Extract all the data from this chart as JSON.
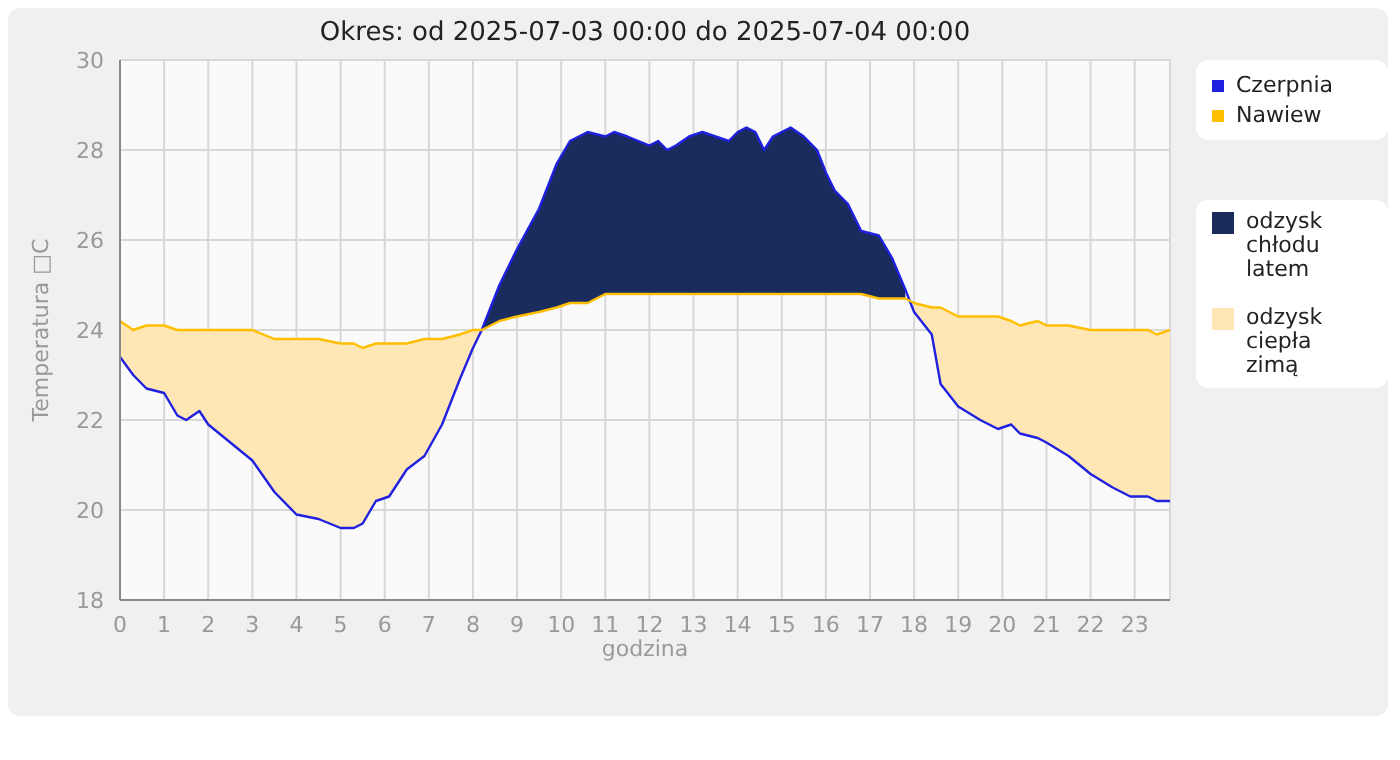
{
  "chart_data": {
    "type": "line",
    "title": "Okres: od 2025-07-03 00:00 do 2025-07-04 00:00",
    "xlabel": "godzina",
    "ylabel": "Temperatura □C",
    "x": [
      0,
      0.3,
      0.6,
      1,
      1.3,
      1.5,
      1.8,
      2,
      2.5,
      3,
      3.5,
      4,
      4.5,
      5,
      5.3,
      5.5,
      5.8,
      6.1,
      6.5,
      6.9,
      7.3,
      7.7,
      8,
      8.2,
      8.6,
      9,
      9.5,
      9.9,
      10.2,
      10.6,
      11,
      11.2,
      11.5,
      12,
      12.2,
      12.4,
      12.6,
      12.9,
      13.2,
      13.5,
      13.8,
      14,
      14.2,
      14.4,
      14.6,
      14.8,
      15.2,
      15.5,
      15.8,
      16,
      16.2,
      16.5,
      16.8,
      17.2,
      17.5,
      17.8,
      18,
      18.4,
      18.6,
      19,
      19.5,
      19.9,
      20.2,
      20.4,
      20.8,
      21,
      21.5,
      22,
      22.5,
      22.9,
      23.3,
      23.5,
      23.8
    ],
    "series": [
      {
        "name": "Czerpnia",
        "color": "#2020e0",
        "values": [
          23.4,
          23.0,
          22.7,
          22.6,
          22.1,
          22.0,
          22.2,
          21.9,
          21.5,
          21.1,
          20.4,
          19.9,
          19.8,
          19.6,
          19.6,
          19.7,
          20.2,
          20.3,
          20.9,
          21.2,
          21.9,
          22.9,
          23.6,
          24.0,
          25.0,
          25.8,
          26.7,
          27.7,
          28.2,
          28.4,
          28.3,
          28.4,
          28.3,
          28.1,
          28.2,
          28.0,
          28.1,
          28.3,
          28.4,
          28.3,
          28.2,
          28.4,
          28.5,
          28.4,
          28.0,
          28.3,
          28.5,
          28.3,
          28.0,
          27.5,
          27.1,
          26.8,
          26.2,
          26.1,
          25.6,
          24.9,
          24.4,
          23.9,
          22.8,
          22.3,
          22.0,
          21.8,
          21.9,
          21.7,
          21.6,
          21.5,
          21.2,
          20.8,
          20.5,
          20.3,
          20.3,
          20.2,
          20.2
        ]
      },
      {
        "name": "Nawiew",
        "color": "#ffbf00",
        "values": [
          24.2,
          24.0,
          24.1,
          24.1,
          24.0,
          24.0,
          24.0,
          24.0,
          24.0,
          24.0,
          23.8,
          23.8,
          23.8,
          23.7,
          23.7,
          23.6,
          23.7,
          23.7,
          23.7,
          23.8,
          23.8,
          23.9,
          24.0,
          24.0,
          24.2,
          24.3,
          24.4,
          24.5,
          24.6,
          24.6,
          24.8,
          24.8,
          24.8,
          24.8,
          24.8,
          24.8,
          24.8,
          24.8,
          24.8,
          24.8,
          24.8,
          24.8,
          24.8,
          24.8,
          24.8,
          24.8,
          24.8,
          24.8,
          24.8,
          24.8,
          24.8,
          24.8,
          24.8,
          24.7,
          24.7,
          24.7,
          24.6,
          24.5,
          24.5,
          24.3,
          24.3,
          24.3,
          24.2,
          24.1,
          24.2,
          24.1,
          24.1,
          24.0,
          24.0,
          24.0,
          24.0,
          23.9,
          24.0
        ]
      },
      {
        "name": "odzysk chłodu latem",
        "type": "area",
        "color": "#1a2b5e",
        "values": [
          null,
          null,
          null,
          null,
          null,
          null,
          null,
          null,
          null,
          null,
          null,
          null,
          null,
          null,
          null,
          null,
          null,
          null,
          null,
          null,
          null,
          null,
          null,
          24.0,
          25.0,
          25.8,
          26.7,
          27.7,
          28.2,
          28.4,
          28.3,
          28.4,
          28.3,
          28.1,
          28.2,
          28.0,
          28.1,
          28.3,
          28.4,
          28.3,
          28.2,
          28.4,
          28.5,
          28.4,
          28.0,
          28.3,
          28.5,
          28.3,
          28.0,
          27.5,
          27.1,
          26.8,
          26.2,
          26.1,
          25.6,
          24.9,
          null,
          null,
          null,
          null,
          null,
          null,
          null,
          null,
          null,
          null,
          null,
          null,
          null,
          null,
          null,
          null,
          null
        ]
      },
      {
        "name": "odzysk ciepła zimą",
        "type": "area",
        "color": "#ffe6b5",
        "values": [
          24.2,
          24.0,
          24.1,
          24.1,
          24.0,
          24.0,
          24.0,
          24.0,
          24.0,
          24.0,
          23.8,
          23.8,
          23.8,
          23.7,
          23.7,
          23.6,
          23.7,
          23.7,
          23.7,
          23.8,
          23.8,
          23.9,
          24.0,
          24.0,
          null,
          null,
          null,
          null,
          null,
          null,
          null,
          null,
          null,
          null,
          null,
          null,
          null,
          null,
          null,
          null,
          null,
          null,
          null,
          null,
          null,
          null,
          null,
          null,
          null,
          null,
          null,
          null,
          null,
          null,
          null,
          null,
          24.6,
          24.5,
          24.5,
          24.3,
          24.3,
          24.3,
          24.2,
          24.1,
          24.2,
          24.1,
          24.1,
          24.0,
          24.0,
          24.0,
          24.0,
          23.9,
          24.0
        ]
      }
    ],
    "xlim": [
      0,
      23.8
    ],
    "xticks": [
      0,
      1,
      2,
      3,
      4,
      5,
      6,
      7,
      8,
      9,
      10,
      11,
      12,
      13,
      14,
      15,
      16,
      17,
      18,
      19,
      20,
      21,
      22,
      23
    ],
    "ylim": [
      18,
      30
    ],
    "yticks": [
      18,
      20,
      22,
      24,
      26,
      28,
      30
    ],
    "grid": true,
    "legend": "right"
  }
}
